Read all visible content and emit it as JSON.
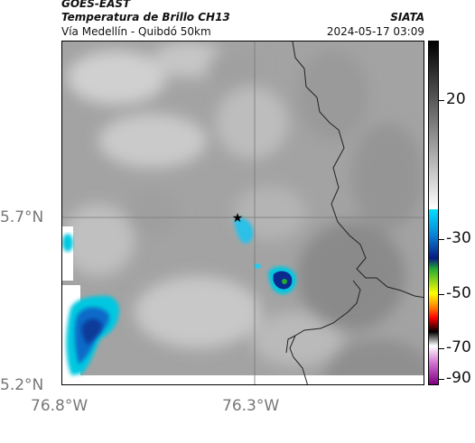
{
  "header": {
    "satellite": "GOES-EAST",
    "product": "Temperatura de Brillo CH13",
    "location": "Vía Medellín - Quibdó 50km",
    "organization": "SIATA",
    "timestamp": "2024-05-17 03:09"
  },
  "map": {
    "lat_labels": [
      "5.7°N",
      "5.2°N"
    ],
    "lon_labels": [
      "76.8°W",
      "76.3°W"
    ],
    "marker_icon": "star-icon",
    "colors": {
      "cold_cloud": "#00b8d9",
      "deep_cold": "#0a2a8a",
      "very_deep": "#22aa33",
      "background_gray": "#9a9a9a"
    }
  },
  "colorbar": {
    "labels": [
      "20",
      "-30",
      "-50",
      "-70",
      "-90"
    ],
    "unit_hint": "brightness temperature"
  }
}
